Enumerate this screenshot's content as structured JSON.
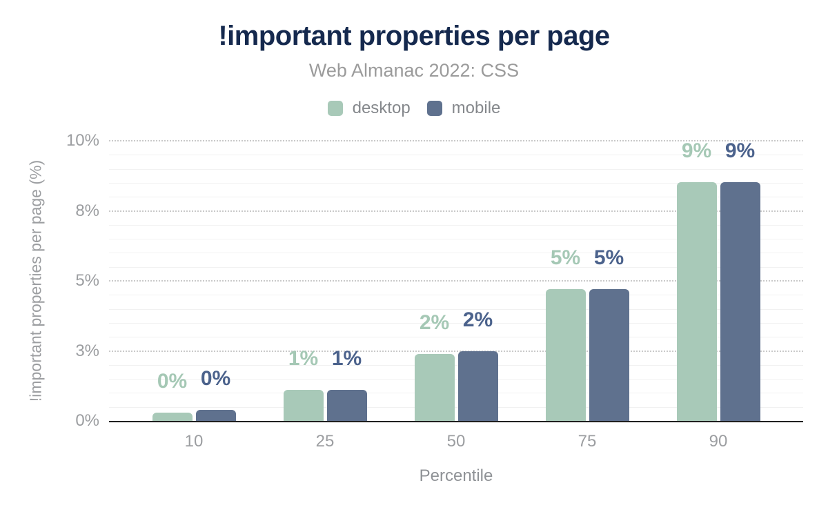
{
  "chart_data": {
    "type": "bar",
    "title": "!important properties per page",
    "subtitle": "Web Almanac 2022: CSS",
    "xlabel": "Percentile",
    "ylabel": "!important properties per page (%)",
    "categories": [
      "10",
      "25",
      "50",
      "75",
      "90"
    ],
    "series": [
      {
        "name": "desktop",
        "color": "#a8c9b8",
        "label_color": "#a5c8b5",
        "values": [
          0.3,
          1.1,
          2.4,
          4.7,
          9.0
        ],
        "labels": [
          "0%",
          "1%",
          "2%",
          "5%",
          "9%"
        ]
      },
      {
        "name": "mobile",
        "color": "#5f718e",
        "label_color": "#4b628c",
        "values": [
          0.4,
          1.1,
          2.5,
          4.7,
          8.7
        ],
        "labels": [
          "0%",
          "1%",
          "2%",
          "5%",
          "9%"
        ]
      }
    ],
    "ylim": [
      0,
      10
    ],
    "yticks": [
      {
        "value": 0,
        "label": "0%"
      },
      {
        "value": 2.5,
        "label": "3%"
      },
      {
        "value": 5,
        "label": "5%"
      },
      {
        "value": 7.5,
        "label": "8%"
      },
      {
        "value": 10,
        "label": "10%"
      }
    ],
    "grid": {
      "major_step": 2.5,
      "minor_step": 0.5,
      "major_style": "dotted",
      "minor_style": "solid"
    },
    "legend_position": "top"
  },
  "colors": {
    "title": "#15294e",
    "subtitle": "#9b9b9b",
    "legend_text": "#85888c",
    "tick_text": "#9c9ea1",
    "axis_title_text": "#8f9296",
    "gridline_minor": "#f1f1f1",
    "gridline_major": "#c9c9c9",
    "baseline": "#1f1f1f",
    "background": "#ffffff"
  }
}
